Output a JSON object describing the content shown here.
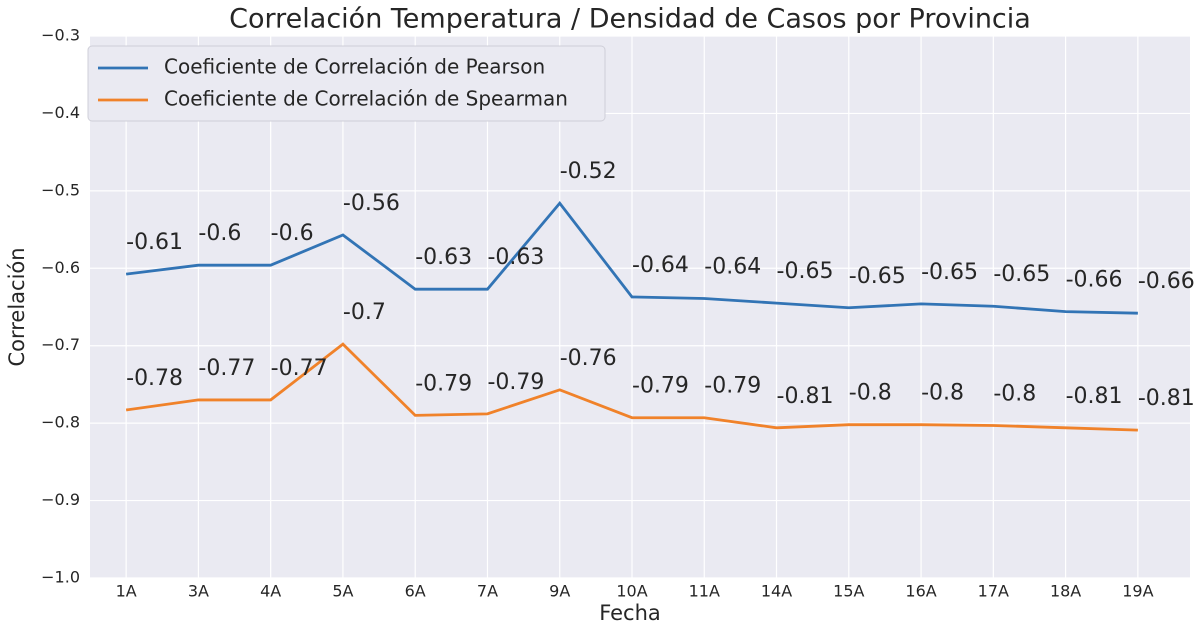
{
  "chart_data": {
    "type": "line",
    "title": "Correlación Temperatura / Densidad de Casos por Provincia",
    "x_label": "Fecha",
    "y_label": "Correlación",
    "categories": [
      "1A",
      "3A",
      "4A",
      "5A",
      "6A",
      "7A",
      "9A",
      "10A",
      "11A",
      "14A",
      "15A",
      "16A",
      "17A",
      "18A",
      "19A"
    ],
    "series": [
      {
        "name": "Coeficiente de Correlación de Pearson",
        "color": "#3274b5",
        "values": [
          -0.6075,
          -0.596,
          -0.596,
          -0.557,
          -0.627,
          -0.627,
          -0.516,
          -0.637,
          -0.639,
          -0.645,
          -0.651,
          -0.646,
          -0.649,
          -0.656,
          -0.658
        ],
        "value_labels": [
          "-0.61",
          "-0.6",
          "-0.6",
          "-0.56",
          "-0.63",
          "-0.63",
          "-0.52",
          "-0.64",
          "-0.64",
          "-0.65",
          "-0.65",
          "-0.65",
          "-0.65",
          "-0.66",
          "-0.66"
        ]
      },
      {
        "name": "Coeficiente de Correlación de Spearman",
        "color": "#f0822a",
        "values": [
          -0.783,
          -0.77,
          -0.77,
          -0.698,
          -0.79,
          -0.788,
          -0.757,
          -0.793,
          -0.793,
          -0.806,
          -0.802,
          -0.802,
          -0.803,
          -0.806,
          -0.809
        ],
        "value_labels": [
          "-0.78",
          "-0.77",
          "-0.77",
          "-0.7",
          "-0.79",
          "-0.79",
          "-0.76",
          "-0.79",
          "-0.79",
          "-0.81",
          "-0.8",
          "-0.8",
          "-0.8",
          "-0.81",
          "-0.81"
        ]
      }
    ],
    "ylim": [
      -1.0,
      -0.3
    ],
    "yticks": [
      {
        "value": -1.0,
        "label": "−1.0"
      },
      {
        "value": -0.9,
        "label": "−0.9"
      },
      {
        "value": -0.8,
        "label": "−0.8"
      },
      {
        "value": -0.7,
        "label": "−0.7"
      },
      {
        "value": -0.6,
        "label": "−0.6"
      },
      {
        "value": -0.5,
        "label": "−0.5"
      },
      {
        "value": -0.4,
        "label": "−0.4"
      },
      {
        "value": -0.3,
        "label": "−0.3"
      }
    ],
    "grid": true,
    "legend": "upper left"
  }
}
